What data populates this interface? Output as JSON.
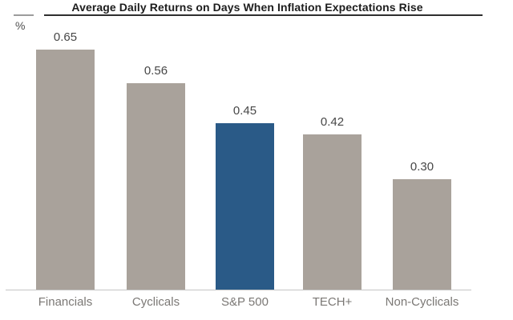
{
  "header": {
    "unit_label": "%"
  },
  "chart_data": {
    "type": "bar",
    "title": "Average Daily Returns on Days When Inflation Expectations Rise",
    "ylabel": "%",
    "categories": [
      "Financials",
      "Cyclicals",
      "S&P 500",
      "TECH+",
      "Non-Cyclicals"
    ],
    "values": [
      0.65,
      0.56,
      0.45,
      0.42,
      0.3
    ],
    "value_labels": [
      "0.65",
      "0.56",
      "0.45",
      "0.42",
      "0.30"
    ],
    "bar_colors": [
      "#a9a29b",
      "#a9a29b",
      "#2a5a87",
      "#a9a29b",
      "#a9a29b"
    ],
    "default_color": "#a9a29b",
    "highlight_color": "#2a5a87",
    "highlight_category": "S&P 500",
    "ylim": [
      0,
      0.72
    ],
    "grid": false,
    "legend": false,
    "value_labels_shown": true,
    "axis_line_color": "#c4c4c4",
    "title_color": "#1d1d1d",
    "category_label_color": "#7b7875",
    "value_label_color": "#474747"
  }
}
